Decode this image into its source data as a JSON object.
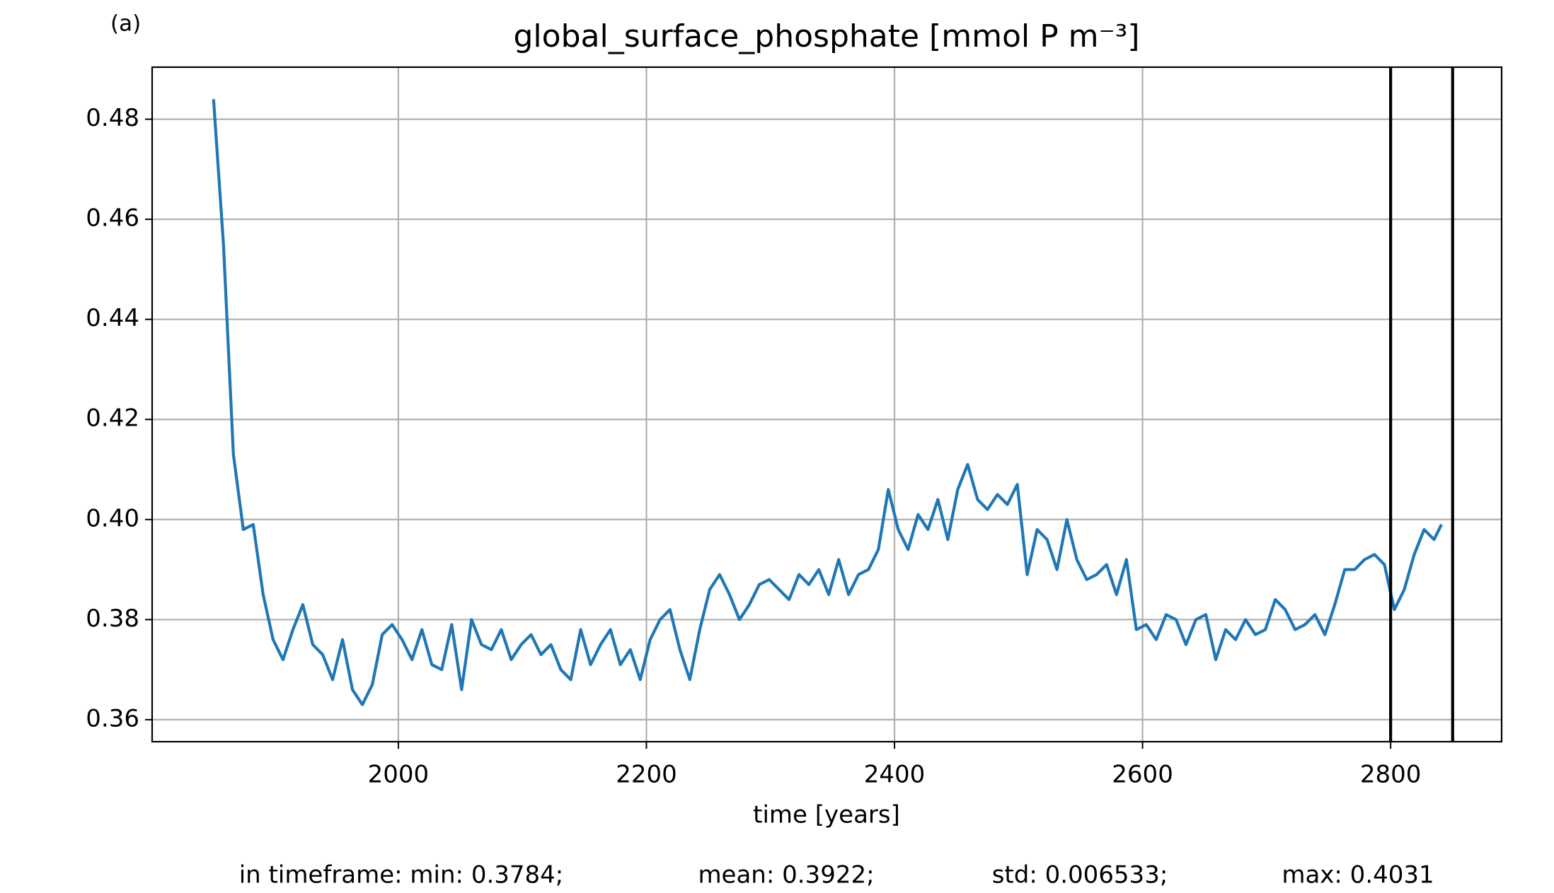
{
  "chart_data": {
    "type": "line",
    "panel_label": "(a)",
    "title": "global_surface_phosphate [mmol P m⁻³]",
    "x_label": "time [years]",
    "footer": [
      "in timeframe: min: 0.3784;",
      "mean: 0.3922;",
      "std: 0.006533;",
      "max: 0.4031"
    ],
    "x": [
      1851,
      1859,
      1867,
      1875,
      1883,
      1891,
      1899,
      1907,
      1915,
      1923,
      1931,
      1939,
      1947,
      1955,
      1963,
      1971,
      1979,
      1987,
      1995,
      2003,
      2011,
      2019,
      2027,
      2035,
      2043,
      2051,
      2059,
      2067,
      2075,
      2083,
      2091,
      2099,
      2107,
      2115,
      2123,
      2131,
      2139,
      2147,
      2155,
      2163,
      2171,
      2179,
      2187,
      2195,
      2203,
      2211,
      2219,
      2227,
      2235,
      2243,
      2251,
      2259,
      2267,
      2275,
      2283,
      2291,
      2299,
      2307,
      2315,
      2323,
      2331,
      2339,
      2347,
      2355,
      2363,
      2371,
      2379,
      2387,
      2395,
      2403,
      2411,
      2419,
      2427,
      2435,
      2443,
      2451,
      2459,
      2467,
      2475,
      2483,
      2491,
      2499,
      2507,
      2515,
      2523,
      2531,
      2539,
      2547,
      2555,
      2563,
      2571,
      2579,
      2587,
      2595,
      2603,
      2611,
      2619,
      2627,
      2635,
      2643,
      2651,
      2659,
      2667,
      2675,
      2683,
      2691,
      2699,
      2707,
      2715,
      2723,
      2731,
      2739,
      2747,
      2755,
      2763,
      2771,
      2779,
      2787,
      2795,
      2803,
      2811,
      2819,
      2827,
      2835,
      2841
    ],
    "series": [
      {
        "color": "#1f77b4",
        "values": [
          0.484,
          0.455,
          0.413,
          0.398,
          0.399,
          0.385,
          0.376,
          0.372,
          0.378,
          0.383,
          0.375,
          0.373,
          0.368,
          0.376,
          0.366,
          0.363,
          0.367,
          0.377,
          0.379,
          0.376,
          0.372,
          0.378,
          0.371,
          0.37,
          0.379,
          0.366,
          0.38,
          0.375,
          0.374,
          0.378,
          0.372,
          0.375,
          0.377,
          0.373,
          0.375,
          0.37,
          0.368,
          0.378,
          0.371,
          0.375,
          0.378,
          0.371,
          0.374,
          0.368,
          0.376,
          0.38,
          0.382,
          0.374,
          0.368,
          0.378,
          0.386,
          0.389,
          0.385,
          0.38,
          0.383,
          0.387,
          0.388,
          0.386,
          0.384,
          0.389,
          0.387,
          0.39,
          0.385,
          0.392,
          0.385,
          0.389,
          0.39,
          0.394,
          0.406,
          0.398,
          0.394,
          0.401,
          0.398,
          0.404,
          0.396,
          0.406,
          0.411,
          0.404,
          0.402,
          0.405,
          0.403,
          0.407,
          0.389,
          0.398,
          0.396,
          0.39,
          0.4,
          0.392,
          0.388,
          0.389,
          0.391,
          0.385,
          0.392,
          0.378,
          0.379,
          0.376,
          0.381,
          0.38,
          0.375,
          0.38,
          0.381,
          0.372,
          0.378,
          0.376,
          0.38,
          0.377,
          0.378,
          0.384,
          0.382,
          0.378,
          0.379,
          0.381,
          0.377,
          0.383,
          0.39,
          0.39,
          0.392,
          0.393,
          0.391,
          0.382,
          0.386,
          0.393,
          0.398,
          0.396,
          0.399
        ]
      }
    ],
    "vlines": [
      2800,
      2850
    ],
    "xlim": [
      1801.5,
      2889.5
    ],
    "xticks": [
      2000,
      2200,
      2400,
      2600,
      2800
    ],
    "ylim": [
      0.3556,
      0.4904
    ],
    "yticks": [
      0.36,
      0.38,
      0.4,
      0.42,
      0.44,
      0.46,
      0.48
    ],
    "grid": true
  }
}
